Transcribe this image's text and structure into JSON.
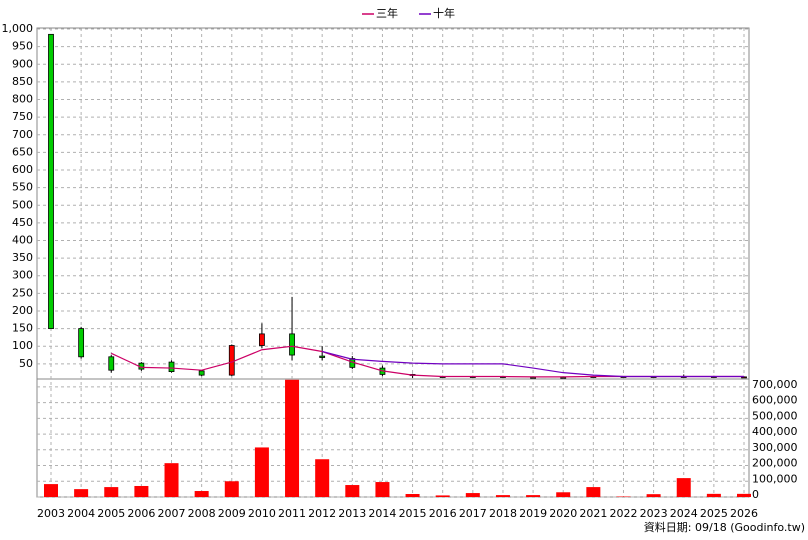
{
  "chart_data": {
    "type": "candlestick",
    "categories": [
      "2003",
      "2004",
      "2005",
      "2006",
      "2007",
      "2008",
      "2009",
      "2010",
      "2011",
      "2012",
      "2013",
      "2014",
      "2015",
      "2016",
      "2017",
      "2018",
      "2019",
      "2020",
      "2021",
      "2022",
      "2023",
      "2024",
      "2025",
      "2026"
    ],
    "open": [
      985,
      150,
      70,
      52,
      55,
      30,
      18,
      102,
      135,
      72,
      65,
      38,
      20,
      14,
      14,
      14,
      12,
      12,
      14,
      14,
      14,
      14,
      14,
      13
    ],
    "high": [
      985,
      155,
      75,
      55,
      60,
      31,
      105,
      165,
      240,
      100,
      72,
      45,
      22,
      16,
      16,
      16,
      14,
      14,
      16,
      15,
      15,
      20,
      16,
      14
    ],
    "low": [
      150,
      65,
      25,
      30,
      25,
      15,
      15,
      95,
      60,
      60,
      35,
      15,
      10,
      11,
      11,
      11,
      10,
      10,
      12,
      12,
      12,
      12,
      12,
      12
    ],
    "close": [
      150,
      70,
      32,
      35,
      28,
      18,
      102,
      135,
      75,
      68,
      40,
      20,
      17,
      13,
      13,
      13,
      11,
      11,
      13,
      13,
      13,
      13,
      13,
      13
    ],
    "up_color": "#ff0000",
    "down_color": "#00cc00",
    "ylim": [
      7,
      1003
    ],
    "yticks": [
      50,
      100,
      150,
      200,
      250,
      300,
      350,
      400,
      450,
      500,
      550,
      600,
      650,
      700,
      750,
      800,
      850,
      900,
      950,
      {
        "value": 1000,
        "label": "1,000"
      }
    ],
    "series": [
      {
        "name": "三年",
        "color": "#cc0066",
        "values": [
          null,
          null,
          80,
          40,
          38,
          32,
          55,
          90,
          100,
          85,
          55,
          30,
          18,
          14,
          14,
          14,
          13,
          13,
          14,
          14,
          14,
          14,
          14,
          14
        ]
      },
      {
        "name": "十年",
        "color": "#7000c0",
        "values": [
          null,
          null,
          null,
          null,
          null,
          null,
          null,
          null,
          null,
          85,
          63,
          57,
          52,
          50,
          50,
          50,
          38,
          25,
          18,
          14,
          14,
          14,
          14,
          14
        ]
      }
    ],
    "volume": {
      "type": "bar",
      "color": "#ff0000",
      "values": [
        82000,
        50000,
        63000,
        70000,
        215000,
        38000,
        100000,
        315000,
        745000,
        240000,
        76000,
        95000,
        19000,
        10000,
        25000,
        12000,
        12000,
        30000,
        63000,
        3000,
        18000,
        120000,
        20000,
        20000
      ],
      "ylim": [
        0,
        750000
      ],
      "yticks": [
        0,
        {
          "value": 100000,
          "label": "100,000"
        },
        {
          "value": 200000,
          "label": "200,000"
        },
        {
          "value": 300000,
          "label": "300,000"
        },
        {
          "value": 400000,
          "label": "400,000"
        },
        {
          "value": 500000,
          "label": "500,000"
        },
        {
          "value": 600000,
          "label": "600,000"
        },
        {
          "value": 700000,
          "label": "700,000"
        }
      ]
    },
    "grid": true,
    "note": "資料日期: 09/18 (Goodinfo.tw)"
  }
}
